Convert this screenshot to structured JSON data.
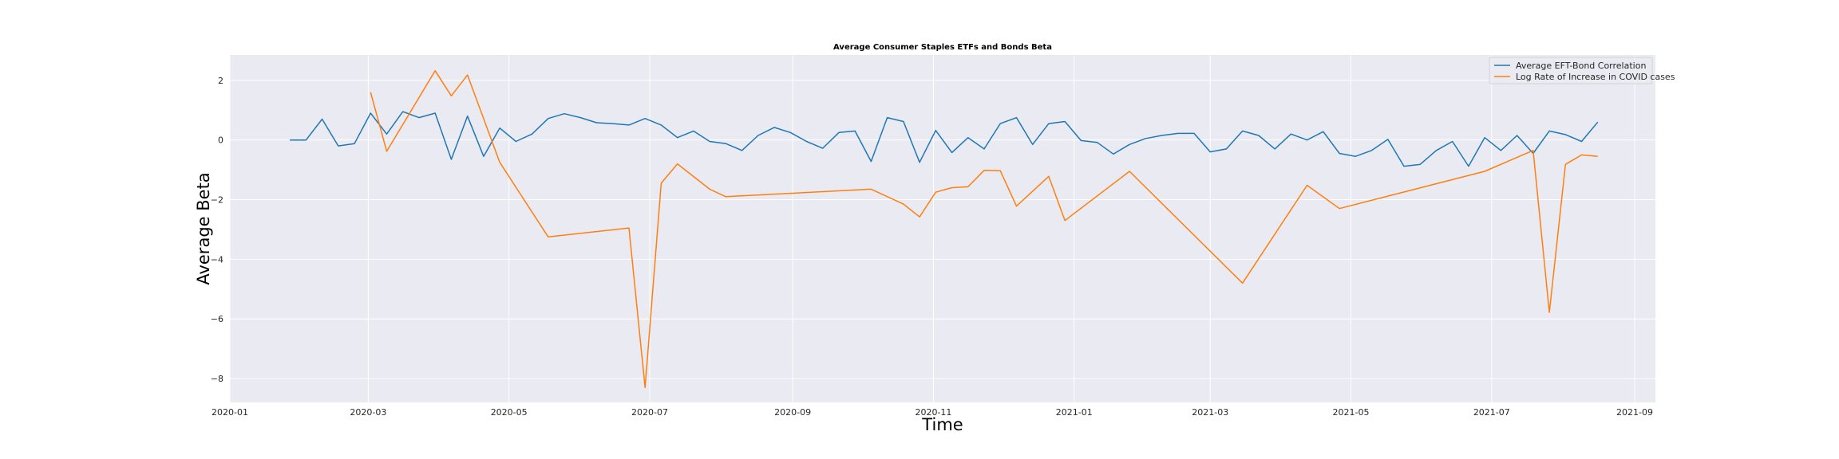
{
  "chart_data": {
    "type": "line",
    "title": "Average Consumer Staples ETFs and Bonds Beta",
    "xlabel": "Time",
    "ylabel": "Average Beta",
    "grid": true,
    "legend_position": "top-right",
    "background": "#eaeaf2",
    "x_axis_type": "date",
    "xlim": [
      "2020-01-01",
      "2021-09-10"
    ],
    "ylim": [
      -8.8,
      2.85
    ],
    "x_ticks": [
      "2020-01-01",
      "2020-03-01",
      "2020-05-01",
      "2020-07-01",
      "2020-09-01",
      "2020-11-01",
      "2021-01-01",
      "2021-03-01",
      "2021-05-01",
      "2021-07-01",
      "2021-09-01"
    ],
    "x_tick_labels": [
      "2020-01",
      "2020-03",
      "2020-05",
      "2020-07",
      "2020-09",
      "2020-11",
      "2021-01",
      "2021-03",
      "2021-05",
      "2021-07",
      "2021-09"
    ],
    "y_ticks": [
      -8,
      -6,
      -4,
      -2,
      0,
      2
    ],
    "y_tick_labels": [
      "−8",
      "−6",
      "−4",
      "−2",
      "0",
      "2"
    ],
    "series": [
      {
        "name": "Average EFT-Bond Correlation",
        "color": "#1f77b4",
        "points": [
          [
            "2020-01-27",
            0.0
          ],
          [
            "2020-02-03",
            0.0
          ],
          [
            "2020-02-10",
            0.7
          ],
          [
            "2020-02-17",
            -0.2
          ],
          [
            "2020-02-24",
            -0.12
          ],
          [
            "2020-03-02",
            0.9
          ],
          [
            "2020-03-09",
            0.2
          ],
          [
            "2020-03-16",
            0.95
          ],
          [
            "2020-03-23",
            0.75
          ],
          [
            "2020-03-30",
            0.9
          ],
          [
            "2020-04-06",
            -0.65
          ],
          [
            "2020-04-13",
            0.8
          ],
          [
            "2020-04-20",
            -0.55
          ],
          [
            "2020-04-27",
            0.4
          ],
          [
            "2020-05-04",
            -0.05
          ],
          [
            "2020-05-11",
            0.2
          ],
          [
            "2020-05-18",
            0.72
          ],
          [
            "2020-05-25",
            0.88
          ],
          [
            "2020-06-01",
            0.75
          ],
          [
            "2020-06-08",
            0.58
          ],
          [
            "2020-06-15",
            0.55
          ],
          [
            "2020-06-22",
            0.5
          ],
          [
            "2020-06-29",
            0.72
          ],
          [
            "2020-07-06",
            0.5
          ],
          [
            "2020-07-13",
            0.08
          ],
          [
            "2020-07-20",
            0.3
          ],
          [
            "2020-07-27",
            -0.05
          ],
          [
            "2020-08-03",
            -0.12
          ],
          [
            "2020-08-10",
            -0.35
          ],
          [
            "2020-08-17",
            0.15
          ],
          [
            "2020-08-24",
            0.42
          ],
          [
            "2020-08-31",
            0.25
          ],
          [
            "2020-09-07",
            -0.05
          ],
          [
            "2020-09-14",
            -0.28
          ],
          [
            "2020-09-21",
            0.25
          ],
          [
            "2020-09-28",
            0.3
          ],
          [
            "2020-10-05",
            -0.72
          ],
          [
            "2020-10-12",
            0.75
          ],
          [
            "2020-10-19",
            0.62
          ],
          [
            "2020-10-26",
            -0.75
          ],
          [
            "2020-11-02",
            0.32
          ],
          [
            "2020-11-09",
            -0.42
          ],
          [
            "2020-11-16",
            0.08
          ],
          [
            "2020-11-23",
            -0.3
          ],
          [
            "2020-11-30",
            0.55
          ],
          [
            "2020-12-07",
            0.75
          ],
          [
            "2020-12-14",
            -0.15
          ],
          [
            "2020-12-21",
            0.55
          ],
          [
            "2020-12-28",
            0.62
          ],
          [
            "2021-01-04",
            -0.02
          ],
          [
            "2021-01-11",
            -0.08
          ],
          [
            "2021-01-18",
            -0.47
          ],
          [
            "2021-01-25",
            -0.15
          ],
          [
            "2021-02-01",
            0.05
          ],
          [
            "2021-02-08",
            0.15
          ],
          [
            "2021-02-15",
            0.22
          ],
          [
            "2021-02-22",
            0.22
          ],
          [
            "2021-03-01",
            -0.4
          ],
          [
            "2021-03-08",
            -0.3
          ],
          [
            "2021-03-15",
            0.3
          ],
          [
            "2021-03-22",
            0.15
          ],
          [
            "2021-03-29",
            -0.3
          ],
          [
            "2021-04-05",
            0.2
          ],
          [
            "2021-04-12",
            0.0
          ],
          [
            "2021-04-19",
            0.28
          ],
          [
            "2021-04-26",
            -0.45
          ],
          [
            "2021-05-03",
            -0.55
          ],
          [
            "2021-05-10",
            -0.35
          ],
          [
            "2021-05-17",
            0.02
          ],
          [
            "2021-05-24",
            -0.88
          ],
          [
            "2021-05-31",
            -0.82
          ],
          [
            "2021-06-07",
            -0.35
          ],
          [
            "2021-06-14",
            -0.05
          ],
          [
            "2021-06-21",
            -0.88
          ],
          [
            "2021-06-28",
            0.08
          ],
          [
            "2021-07-05",
            -0.35
          ],
          [
            "2021-07-12",
            0.15
          ],
          [
            "2021-07-19",
            -0.45
          ],
          [
            "2021-07-26",
            0.3
          ],
          [
            "2021-08-02",
            0.18
          ],
          [
            "2021-08-09",
            -0.05
          ],
          [
            "2021-08-16",
            0.6
          ]
        ]
      },
      {
        "name": "Log Rate of Increase in COVID cases",
        "color": "#ff7f0e",
        "points": [
          [
            "2020-03-02",
            1.6
          ],
          [
            "2020-03-09",
            -0.38
          ],
          [
            "2020-03-30",
            2.32
          ],
          [
            "2020-04-06",
            1.48
          ],
          [
            "2020-04-13",
            2.18
          ],
          [
            "2020-04-27",
            -0.75
          ],
          [
            "2020-05-18",
            -3.25
          ],
          [
            "2020-06-22",
            -2.95
          ],
          [
            "2020-06-29",
            -8.3
          ],
          [
            "2020-07-06",
            -1.45
          ],
          [
            "2020-07-13",
            -0.8
          ],
          [
            "2020-07-27",
            -1.65
          ],
          [
            "2020-08-03",
            -1.9
          ],
          [
            "2020-10-05",
            -1.65
          ],
          [
            "2020-10-19",
            -2.15
          ],
          [
            "2020-10-26",
            -2.58
          ],
          [
            "2020-11-02",
            -1.75
          ],
          [
            "2020-11-09",
            -1.6
          ],
          [
            "2020-11-16",
            -1.57
          ],
          [
            "2020-11-23",
            -1.02
          ],
          [
            "2020-11-30",
            -1.03
          ],
          [
            "2020-12-07",
            -2.22
          ],
          [
            "2020-12-21",
            -1.22
          ],
          [
            "2020-12-28",
            -2.7
          ],
          [
            "2021-01-25",
            -1.05
          ],
          [
            "2021-03-15",
            -4.8
          ],
          [
            "2021-04-12",
            -1.52
          ],
          [
            "2021-04-26",
            -2.3
          ],
          [
            "2021-06-28",
            -1.05
          ],
          [
            "2021-07-19",
            -0.35
          ],
          [
            "2021-07-26",
            -5.78
          ],
          [
            "2021-08-02",
            -0.82
          ],
          [
            "2021-08-09",
            -0.5
          ],
          [
            "2021-08-16",
            -0.55
          ]
        ]
      }
    ]
  }
}
